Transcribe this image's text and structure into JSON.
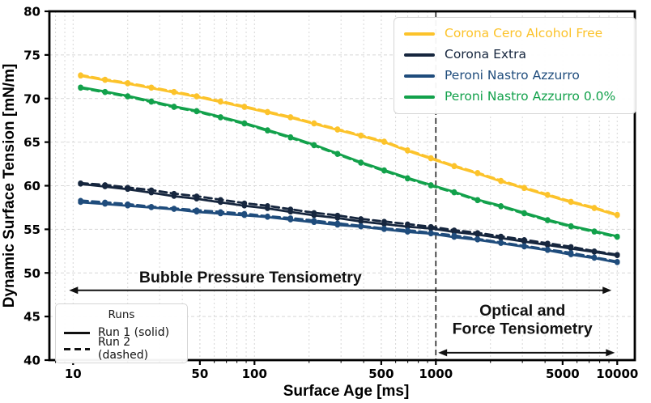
{
  "chart_data": {
    "type": "line",
    "title": "",
    "xlabel": "Surface Age [ms]",
    "ylabel": "Dynamic Surface Tension [mN/m]",
    "xscale": "log",
    "xlim": [
      7.4,
      12500
    ],
    "ylim": [
      40,
      80
    ],
    "xticks": [
      10,
      50,
      100,
      500,
      1000,
      5000,
      10000
    ],
    "yticks": [
      40,
      45,
      50,
      55,
      60,
      65,
      70,
      75,
      80
    ],
    "grid": true,
    "legend_position": "upper right",
    "x": [
      11,
      15,
      20,
      27,
      36,
      48,
      65,
      88,
      118,
      158,
      213,
      287,
      386,
      519,
      698,
      939,
      1262,
      1698,
      2284,
      3072,
      4132,
      5558,
      7476,
      10000
    ],
    "series": [
      {
        "name": "Corona Cero Alcohol Free",
        "color": "#FCC32B",
        "runs": {
          "run1": [
            72.6,
            72.1,
            71.7,
            71.2,
            70.7,
            70.2,
            69.6,
            69.0,
            68.4,
            67.8,
            67.1,
            66.4,
            65.7,
            65.0,
            64.0,
            63.1,
            62.2,
            61.4,
            60.5,
            59.7,
            58.9,
            58.1,
            57.4,
            56.6
          ],
          "run2": [
            72.7,
            72.2,
            71.8,
            71.3,
            70.8,
            70.3,
            69.7,
            69.1,
            68.5,
            67.9,
            67.2,
            66.5,
            65.8,
            65.1,
            64.1,
            63.2,
            62.3,
            61.5,
            60.6,
            59.8,
            59.0,
            58.2,
            57.5,
            56.7
          ]
        }
      },
      {
        "name": "Corona Extra",
        "color": "#16263E",
        "runs": {
          "run1": [
            60.2,
            59.9,
            59.6,
            59.2,
            58.8,
            58.5,
            58.1,
            57.7,
            57.4,
            57.0,
            56.6,
            56.3,
            55.9,
            55.6,
            55.3,
            55.1,
            54.7,
            54.4,
            54.0,
            53.6,
            53.2,
            52.8,
            52.4,
            52.0
          ],
          "run2": [
            60.3,
            60.1,
            59.8,
            59.5,
            59.1,
            58.8,
            58.4,
            58.0,
            57.7,
            57.3,
            56.9,
            56.6,
            56.2,
            55.9,
            55.6,
            55.3,
            54.9,
            54.6,
            54.2,
            53.8,
            53.4,
            53.0,
            52.5,
            52.1
          ]
        }
      },
      {
        "name": "Peroni Nastro Azzurro",
        "color": "#1F4C7C",
        "runs": {
          "run1": [
            58.1,
            57.9,
            57.7,
            57.5,
            57.3,
            57.0,
            56.8,
            56.6,
            56.4,
            56.1,
            55.8,
            55.5,
            55.3,
            55.0,
            54.7,
            54.5,
            54.1,
            53.8,
            53.4,
            53.0,
            52.6,
            52.1,
            51.7,
            51.2
          ],
          "run2": [
            58.3,
            58.1,
            57.9,
            57.6,
            57.4,
            57.2,
            57.0,
            56.8,
            56.5,
            56.3,
            56.0,
            55.7,
            55.4,
            55.1,
            54.9,
            54.6,
            54.3,
            53.9,
            53.5,
            53.1,
            52.7,
            52.3,
            51.8,
            51.3
          ]
        }
      },
      {
        "name": "Peroni Nastro Azzurro 0.0%",
        "color": "#12A14B",
        "runs": {
          "run1": [
            71.3,
            70.8,
            70.3,
            69.7,
            69.1,
            68.6,
            67.9,
            67.2,
            66.4,
            65.6,
            64.7,
            63.7,
            62.7,
            61.8,
            60.9,
            60.1,
            59.3,
            58.4,
            57.7,
            56.9,
            56.1,
            55.4,
            54.8,
            54.2
          ],
          "run2": [
            71.2,
            70.7,
            70.2,
            69.6,
            69.0,
            68.5,
            67.8,
            67.1,
            66.3,
            65.5,
            64.6,
            63.6,
            62.6,
            61.7,
            60.8,
            60.0,
            59.2,
            58.3,
            57.6,
            56.8,
            56.0,
            55.3,
            54.7,
            54.1
          ]
        }
      }
    ],
    "vline_x": 1000,
    "annotations": {
      "bubble": {
        "label": "Bubble Pressure Tensiometry",
        "label_x_ms": 95,
        "label_y": 48.9,
        "arrow_from_ms": 9.5,
        "arrow_to_ms": 9300,
        "arrow_y": 48.0
      },
      "optical": {
        "label_line1": "Optical and",
        "label_line2": "Force Tensiometry",
        "label_x_ms": 3000,
        "label_y1": 45.1,
        "label_y2": 43.0,
        "arrow_from_ms": 1030,
        "arrow_to_ms": 9700,
        "arrow_y": 40.85
      }
    },
    "runs_legend": {
      "title": "Runs",
      "run1_label": "Run 1 (solid)",
      "run2_label": "Run 2 (dashed)"
    }
  },
  "style": {
    "grid_color": "#d7d7d7",
    "spine_color": "#000000",
    "annotation_color": "#111111",
    "vline_color": "#222222",
    "background": "#ffffff"
  }
}
